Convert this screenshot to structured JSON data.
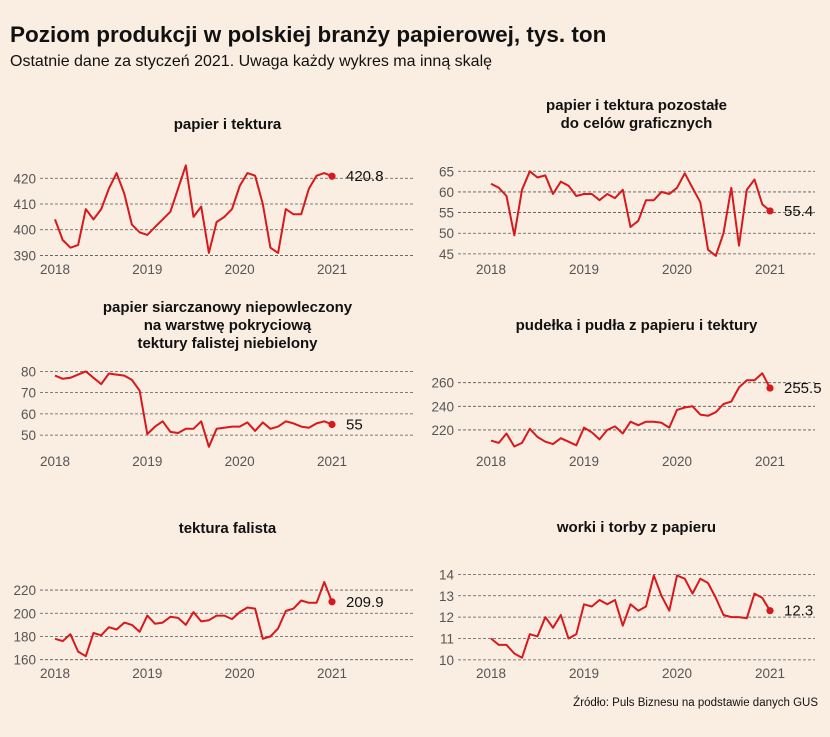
{
  "title": "Poziom produkcji w polskiej branży papierowej, tys. ton",
  "subtitle": "Ostatnie dane za styczeń 2021. Uwaga każdy wykres ma inną skalę",
  "source": "Źródło: Puls Biznesu na podstawie danych GUS",
  "colors": {
    "background": "#faeee3",
    "line": "#d7191c",
    "grid": "#555555",
    "tick_text": "#555555"
  },
  "chart_data": [
    {
      "type": "line",
      "title": "papier i tektura",
      "x_ticks": [
        "2018",
        "2019",
        "2020",
        "2021"
      ],
      "x_start": "2018-01",
      "x_end": "2021-01",
      "ylim": [
        389,
        424
      ],
      "y_ticks": [
        390,
        400,
        410,
        420
      ],
      "last_label": "420.8",
      "grid": true,
      "series": [
        {
          "values": [
            404,
            396,
            393,
            394,
            408,
            404,
            408,
            416,
            422,
            414,
            402,
            399,
            398,
            401,
            404,
            407,
            416,
            425,
            405,
            409,
            391,
            403,
            405,
            408,
            417,
            422,
            421,
            410,
            393,
            391,
            408,
            406,
            406,
            416,
            421,
            422,
            420.8
          ]
        }
      ]
    },
    {
      "type": "line",
      "title": "papier i tektura pozostałe\ndo celów graficznych",
      "x_ticks": [
        "2018",
        "2019",
        "2020",
        "2021"
      ],
      "x_start": "2018-01",
      "x_end": "2021-01",
      "ylim": [
        44,
        67
      ],
      "y_ticks": [
        45,
        50,
        55,
        60,
        65
      ],
      "last_label": "55.4",
      "grid": true,
      "series": [
        {
          "values": [
            62,
            61,
            59,
            49.5,
            60.5,
            65,
            63.5,
            64,
            59.5,
            62.5,
            61.5,
            59,
            59.5,
            59.5,
            58,
            59.5,
            58.5,
            60.5,
            51.5,
            53,
            58,
            58,
            60,
            59.5,
            61,
            64.5,
            61,
            57.5,
            46,
            44.5,
            50,
            61,
            47,
            60.5,
            63,
            57,
            55.4
          ]
        }
      ]
    },
    {
      "type": "line",
      "title": "papier siarczanowy niepowleczony\nna warstwę pokryciową\ntektury falistej niebielony",
      "x_ticks": [
        "2018",
        "2019",
        "2020",
        "2021"
      ],
      "x_start": "2018-01",
      "x_end": "2021-01",
      "ylim": [
        43,
        83
      ],
      "y_ticks": [
        50,
        60,
        70,
        80
      ],
      "last_label": "55",
      "grid": true,
      "series": [
        {
          "values": [
            78,
            76.5,
            77,
            78.5,
            80,
            77,
            74,
            79,
            78.5,
            78,
            76,
            71,
            50.5,
            54,
            56.5,
            51.5,
            51,
            53,
            53,
            56.5,
            44.5,
            53,
            53.5,
            54,
            54,
            56,
            52,
            56,
            53,
            54,
            56.5,
            55.5,
            54,
            53.5,
            55.5,
            56.5,
            55
          ]
        }
      ]
    },
    {
      "type": "line",
      "title": "pudełka i pudła z papieru i tektury",
      "x_ticks": [
        "2018",
        "2019",
        "2020",
        "2021"
      ],
      "x_start": "2018-01",
      "x_end": "2021-01",
      "ylim": [
        203,
        275
      ],
      "y_ticks": [
        220,
        240,
        260
      ],
      "last_label": "255.5",
      "grid": true,
      "series": [
        {
          "values": [
            211,
            209,
            217,
            206,
            209,
            221,
            214,
            210,
            208,
            213,
            210,
            207,
            222,
            218,
            212,
            220,
            223,
            217,
            227,
            224,
            227,
            227,
            226,
            222,
            237,
            239,
            240,
            233,
            232,
            235,
            242,
            244,
            256,
            262,
            262,
            268,
            255.5
          ]
        }
      ]
    },
    {
      "type": "line",
      "title": "tektura falista",
      "x_ticks": [
        "2018",
        "2019",
        "2020",
        "2021"
      ],
      "x_start": "2018-01",
      "x_end": "2021-01",
      "ylim": [
        158,
        233
      ],
      "y_ticks": [
        160,
        180,
        200,
        220
      ],
      "last_label": "209.9",
      "grid": true,
      "series": [
        {
          "values": [
            178,
            176,
            182,
            167,
            163,
            183,
            181,
            188,
            186,
            192,
            190,
            184,
            198,
            191,
            192,
            197,
            196,
            190,
            201,
            193,
            194,
            198,
            198,
            195,
            201,
            205,
            204,
            178,
            180,
            187,
            202,
            204,
            211,
            209,
            209,
            227,
            209.9
          ]
        }
      ]
    },
    {
      "type": "line",
      "title": "worki i torby z papieru",
      "x_ticks": [
        "2018",
        "2019",
        "2020",
        "2021"
      ],
      "x_start": "2018-01",
      "x_end": "2021-01",
      "ylim": [
        9.9,
        14.3
      ],
      "y_ticks": [
        10,
        11,
        12,
        13,
        14
      ],
      "last_label": "12.3",
      "grid": true,
      "series": [
        {
          "values": [
            11,
            10.7,
            10.7,
            10.3,
            10.1,
            11.2,
            11.1,
            12,
            11.5,
            12.1,
            11,
            11.2,
            12.6,
            12.5,
            12.8,
            12.6,
            12.8,
            11.6,
            12.6,
            12.3,
            12.5,
            13.95,
            13,
            12.3,
            13.95,
            13.8,
            13.1,
            13.8,
            13.6,
            12.9,
            12.1,
            12,
            12,
            11.95,
            13.1,
            12.9,
            12.3
          ]
        }
      ]
    }
  ]
}
